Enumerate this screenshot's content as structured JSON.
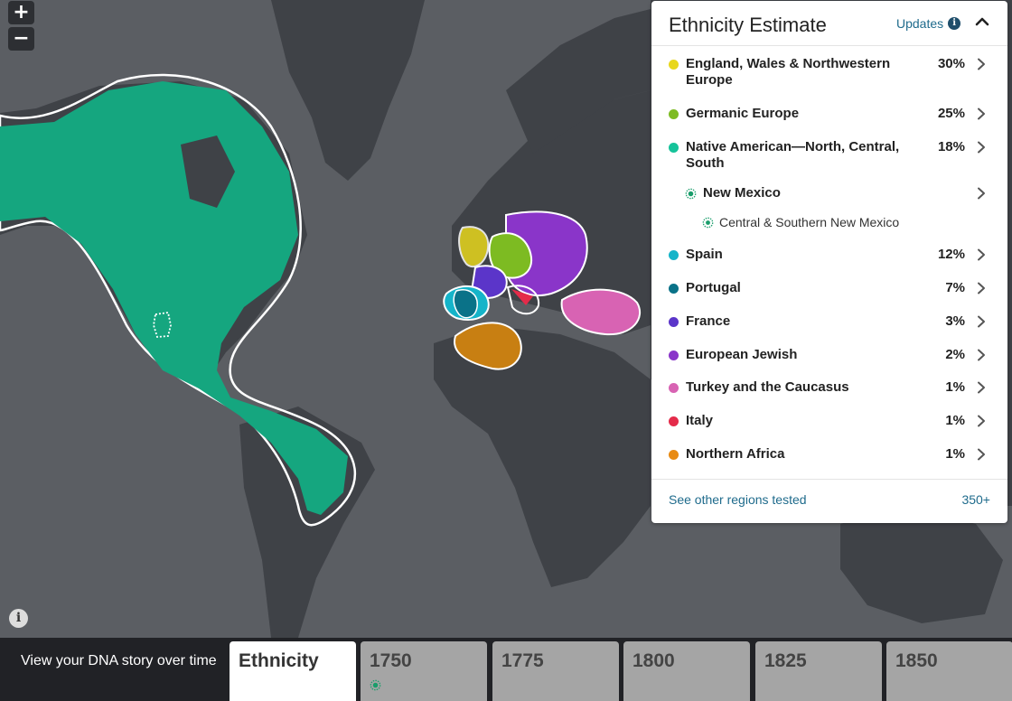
{
  "map": {
    "zoom_in": "+",
    "zoom_out": "−",
    "info": "i"
  },
  "panel": {
    "title": "Ethnicity Estimate",
    "updates_label": "Updates",
    "regions": [
      {
        "name": "England, Wales & Northwestern Europe",
        "pct": "30%",
        "color": "#e8d71c"
      },
      {
        "name": "Germanic Europe",
        "pct": "25%",
        "color": "#7dbb22"
      },
      {
        "name": "Native American—North, Central, South",
        "pct": "18%",
        "color": "#16c39a"
      },
      {
        "name": "Spain",
        "pct": "12%",
        "color": "#15b4c9"
      },
      {
        "name": "Portugal",
        "pct": "7%",
        "color": "#0a7288"
      },
      {
        "name": "France",
        "pct": "3%",
        "color": "#5b35c9"
      },
      {
        "name": "European Jewish",
        "pct": "2%",
        "color": "#8a35c9"
      },
      {
        "name": "Turkey and the Caucasus",
        "pct": "1%",
        "color": "#d863b3"
      },
      {
        "name": "Italy",
        "pct": "1%",
        "color": "#e42b4a"
      },
      {
        "name": "Northern Africa",
        "pct": "1%",
        "color": "#e88a12"
      }
    ],
    "community": "New Mexico",
    "sub_community": "Central & Southern New Mexico",
    "footer_link": "See other regions tested",
    "footer_count": "350+"
  },
  "timeline": {
    "label": "View your DNA story over time",
    "tabs": [
      "Ethnicity",
      "1750",
      "1775",
      "1800",
      "1825",
      "1850"
    ],
    "active": "Ethnicity"
  },
  "colors": {
    "community_green": "#1a9d6b",
    "link_blue": "#1f6b8c"
  }
}
